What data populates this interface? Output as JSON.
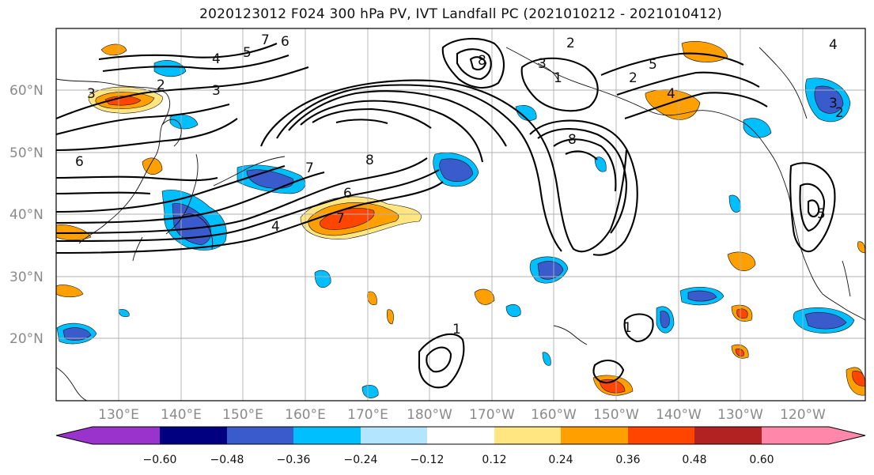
{
  "title": "2020123012 F024 300 hPa PV, IVT Landfall PC (2021010212 - 2021010412)",
  "map": {
    "lat_labels": [
      "60°N",
      "50°N",
      "40°N",
      "30°N",
      "20°N"
    ],
    "lon_labels": [
      "130°E",
      "140°E",
      "150°E",
      "160°E",
      "170°E",
      "180°W",
      "170°W",
      "160°W",
      "150°W",
      "140°W",
      "130°W",
      "120°W"
    ],
    "contour_levels": [
      "1",
      "2",
      "3",
      "4",
      "5",
      "6",
      "7",
      "8"
    ]
  },
  "colorbar": {
    "tick_labels": [
      "−0.60",
      "−0.48",
      "−0.36",
      "−0.24",
      "−0.12",
      "0.12",
      "0.24",
      "0.36",
      "0.48",
      "0.60"
    ],
    "colors": [
      "#9933cc",
      "#000080",
      "#3a5bcc",
      "#00bfff",
      "#b3e5ff",
      "#ffffff",
      "#ffe680",
      "#ffa000",
      "#ff4500",
      "#b22222",
      "#ff88aa"
    ]
  }
}
